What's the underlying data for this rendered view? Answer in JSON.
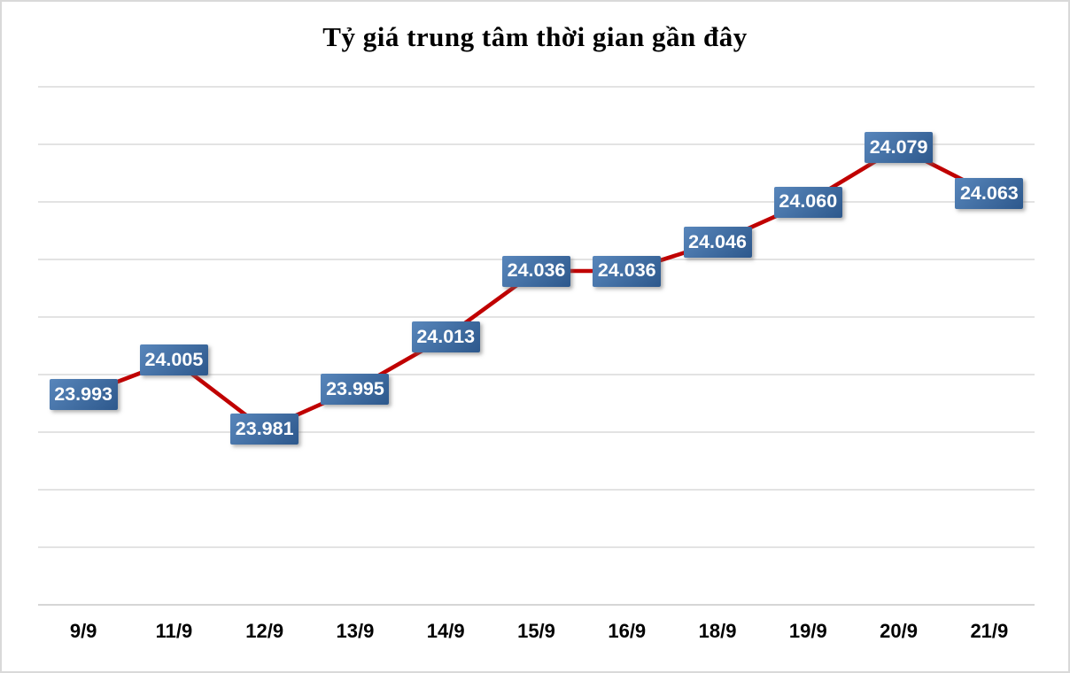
{
  "title": "Tỷ giá trung tâm thời gian gần đây",
  "colors": {
    "background": "#ffffff",
    "chart_border": "#d9d9d9",
    "gridline": "#dadada",
    "axis_line": "#d0d0d0",
    "line": "#c00000",
    "label_box_gradient_start": "#5886bb",
    "label_box_gradient_end": "#2d588c",
    "label_text": "#ffffff",
    "axis_text": "#000000",
    "title_text": "#000000"
  },
  "chart_data": {
    "type": "line",
    "title": "Tỷ giá trung tâm thời gian gần đây",
    "categories": [
      "9/9",
      "11/9",
      "12/9",
      "13/9",
      "14/9",
      "15/9",
      "16/9",
      "18/9",
      "19/9",
      "20/9",
      "21/9"
    ],
    "values": [
      23993,
      24005,
      23981,
      23995,
      24013,
      24036,
      24036,
      24046,
      24060,
      24079,
      24063
    ],
    "value_labels": [
      "23.993",
      "24.005",
      "23.981",
      "23.995",
      "24.013",
      "24.036",
      "24.036",
      "24.046",
      "24.060",
      "24.079",
      "24.063"
    ],
    "xlabel": "",
    "ylabel": "",
    "ylim": [
      23920,
      24100
    ],
    "y_major_unit": 20,
    "y_axis_labels_visible": false,
    "grid": true,
    "legend": false,
    "data_labels": "blue gradient boxes centered on points"
  }
}
